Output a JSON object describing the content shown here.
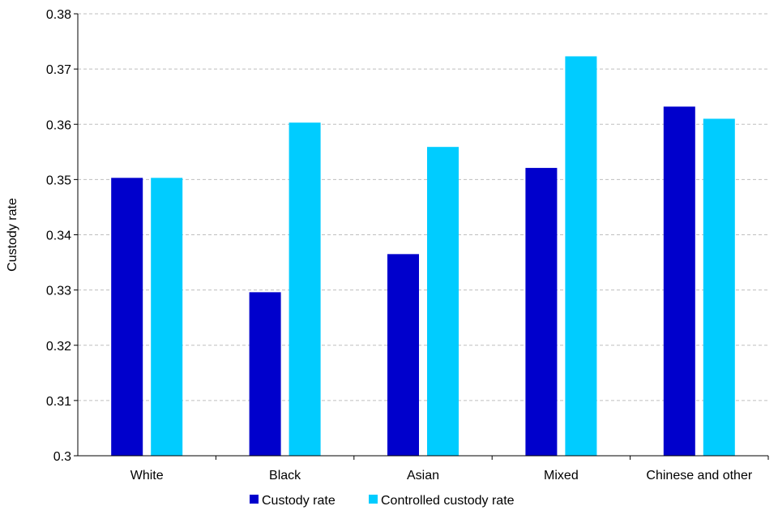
{
  "chart_data": {
    "type": "bar",
    "title": "",
    "xlabel": "",
    "ylabel": "Custody rate",
    "ylim": [
      0.3,
      0.38
    ],
    "yticks": [
      "0.3",
      "0.31",
      "0.32",
      "0.33",
      "0.34",
      "0.35",
      "0.36",
      "0.37",
      "0.38"
    ],
    "categories": [
      "White",
      "Black",
      "Asian",
      "Mixed",
      "Chinese and other"
    ],
    "series": [
      {
        "name": "Custody rate",
        "color": "#0000CC",
        "values": [
          0.3503,
          0.3296,
          0.3365,
          0.3521,
          0.3632
        ]
      },
      {
        "name": "Controlled custody rate",
        "color": "#00CCFF",
        "values": [
          0.3503,
          0.3603,
          0.3559,
          0.3723,
          0.361
        ]
      }
    ],
    "grid": true,
    "legend_position": "bottom"
  }
}
